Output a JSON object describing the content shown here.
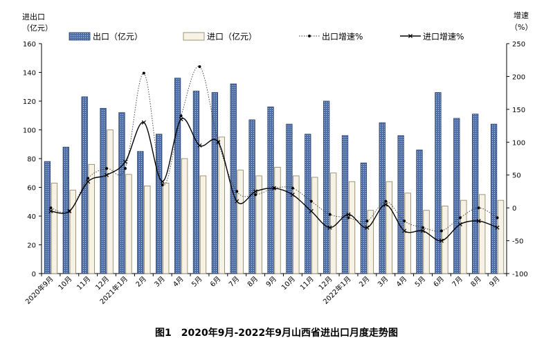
{
  "chart_data": {
    "type": "bar",
    "title": "图1　2020年9月-2022年9月山西省进出口月度走势图",
    "y_left_label": [
      "进出口",
      "（亿元）"
    ],
    "y_right_label": [
      "增速",
      "（%）"
    ],
    "ylim_left": [
      0,
      160
    ],
    "ylim_right": [
      -100,
      250
    ],
    "yticks_left": [
      "0",
      "20",
      "40",
      "60",
      "80",
      "100",
      "120",
      "140",
      "160"
    ],
    "yticks_right": [
      "-100",
      "-50",
      "0",
      "50",
      "100",
      "150",
      "200",
      "250"
    ],
    "categories": [
      "2020年9月",
      "10月",
      "11月",
      "12月",
      "2021年1月",
      "2月",
      "3月",
      "4月",
      "5月",
      "6月",
      "7月",
      "8月",
      "9月",
      "10月",
      "11月",
      "12月",
      "2022年1月",
      "2月",
      "3月",
      "4月",
      "5月",
      "6月",
      "7月",
      "8月",
      "9月"
    ],
    "series": [
      {
        "name": "出口（亿元）",
        "kind": "bar",
        "axis": "left",
        "color": "#4f6fa8",
        "values": [
          78,
          88,
          123,
          115,
          112,
          85,
          97,
          136,
          127,
          126,
          132,
          107,
          116,
          104,
          97,
          120,
          96,
          77,
          105,
          96,
          86,
          126,
          108,
          111,
          104
        ]
      },
      {
        "name": "进口（亿元）",
        "kind": "bar",
        "axis": "left",
        "color": "#f6f2e6",
        "values": [
          63,
          58,
          76,
          100,
          69,
          61,
          63,
          80,
          68,
          95,
          72,
          68,
          74,
          68,
          67,
          70,
          64,
          44,
          64,
          56,
          44,
          47,
          51,
          55,
          51
        ]
      },
      {
        "name": "出口增速%",
        "kind": "line",
        "axis": "right",
        "dash": true,
        "marker": "dot",
        "values": [
          0,
          -5,
          45,
          60,
          60,
          205,
          35,
          140,
          215,
          100,
          25,
          20,
          30,
          30,
          10,
          -10,
          -15,
          -20,
          10,
          -20,
          -30,
          -35,
          -15,
          0,
          -15
        ]
      },
      {
        "name": "进口增速%",
        "kind": "line",
        "axis": "right",
        "dash": false,
        "marker": "x",
        "values": [
          -5,
          -5,
          40,
          50,
          70,
          130,
          40,
          135,
          95,
          100,
          10,
          25,
          30,
          20,
          -5,
          -30,
          -10,
          -30,
          5,
          -35,
          -35,
          -50,
          -25,
          -20,
          -30
        ]
      }
    ]
  }
}
